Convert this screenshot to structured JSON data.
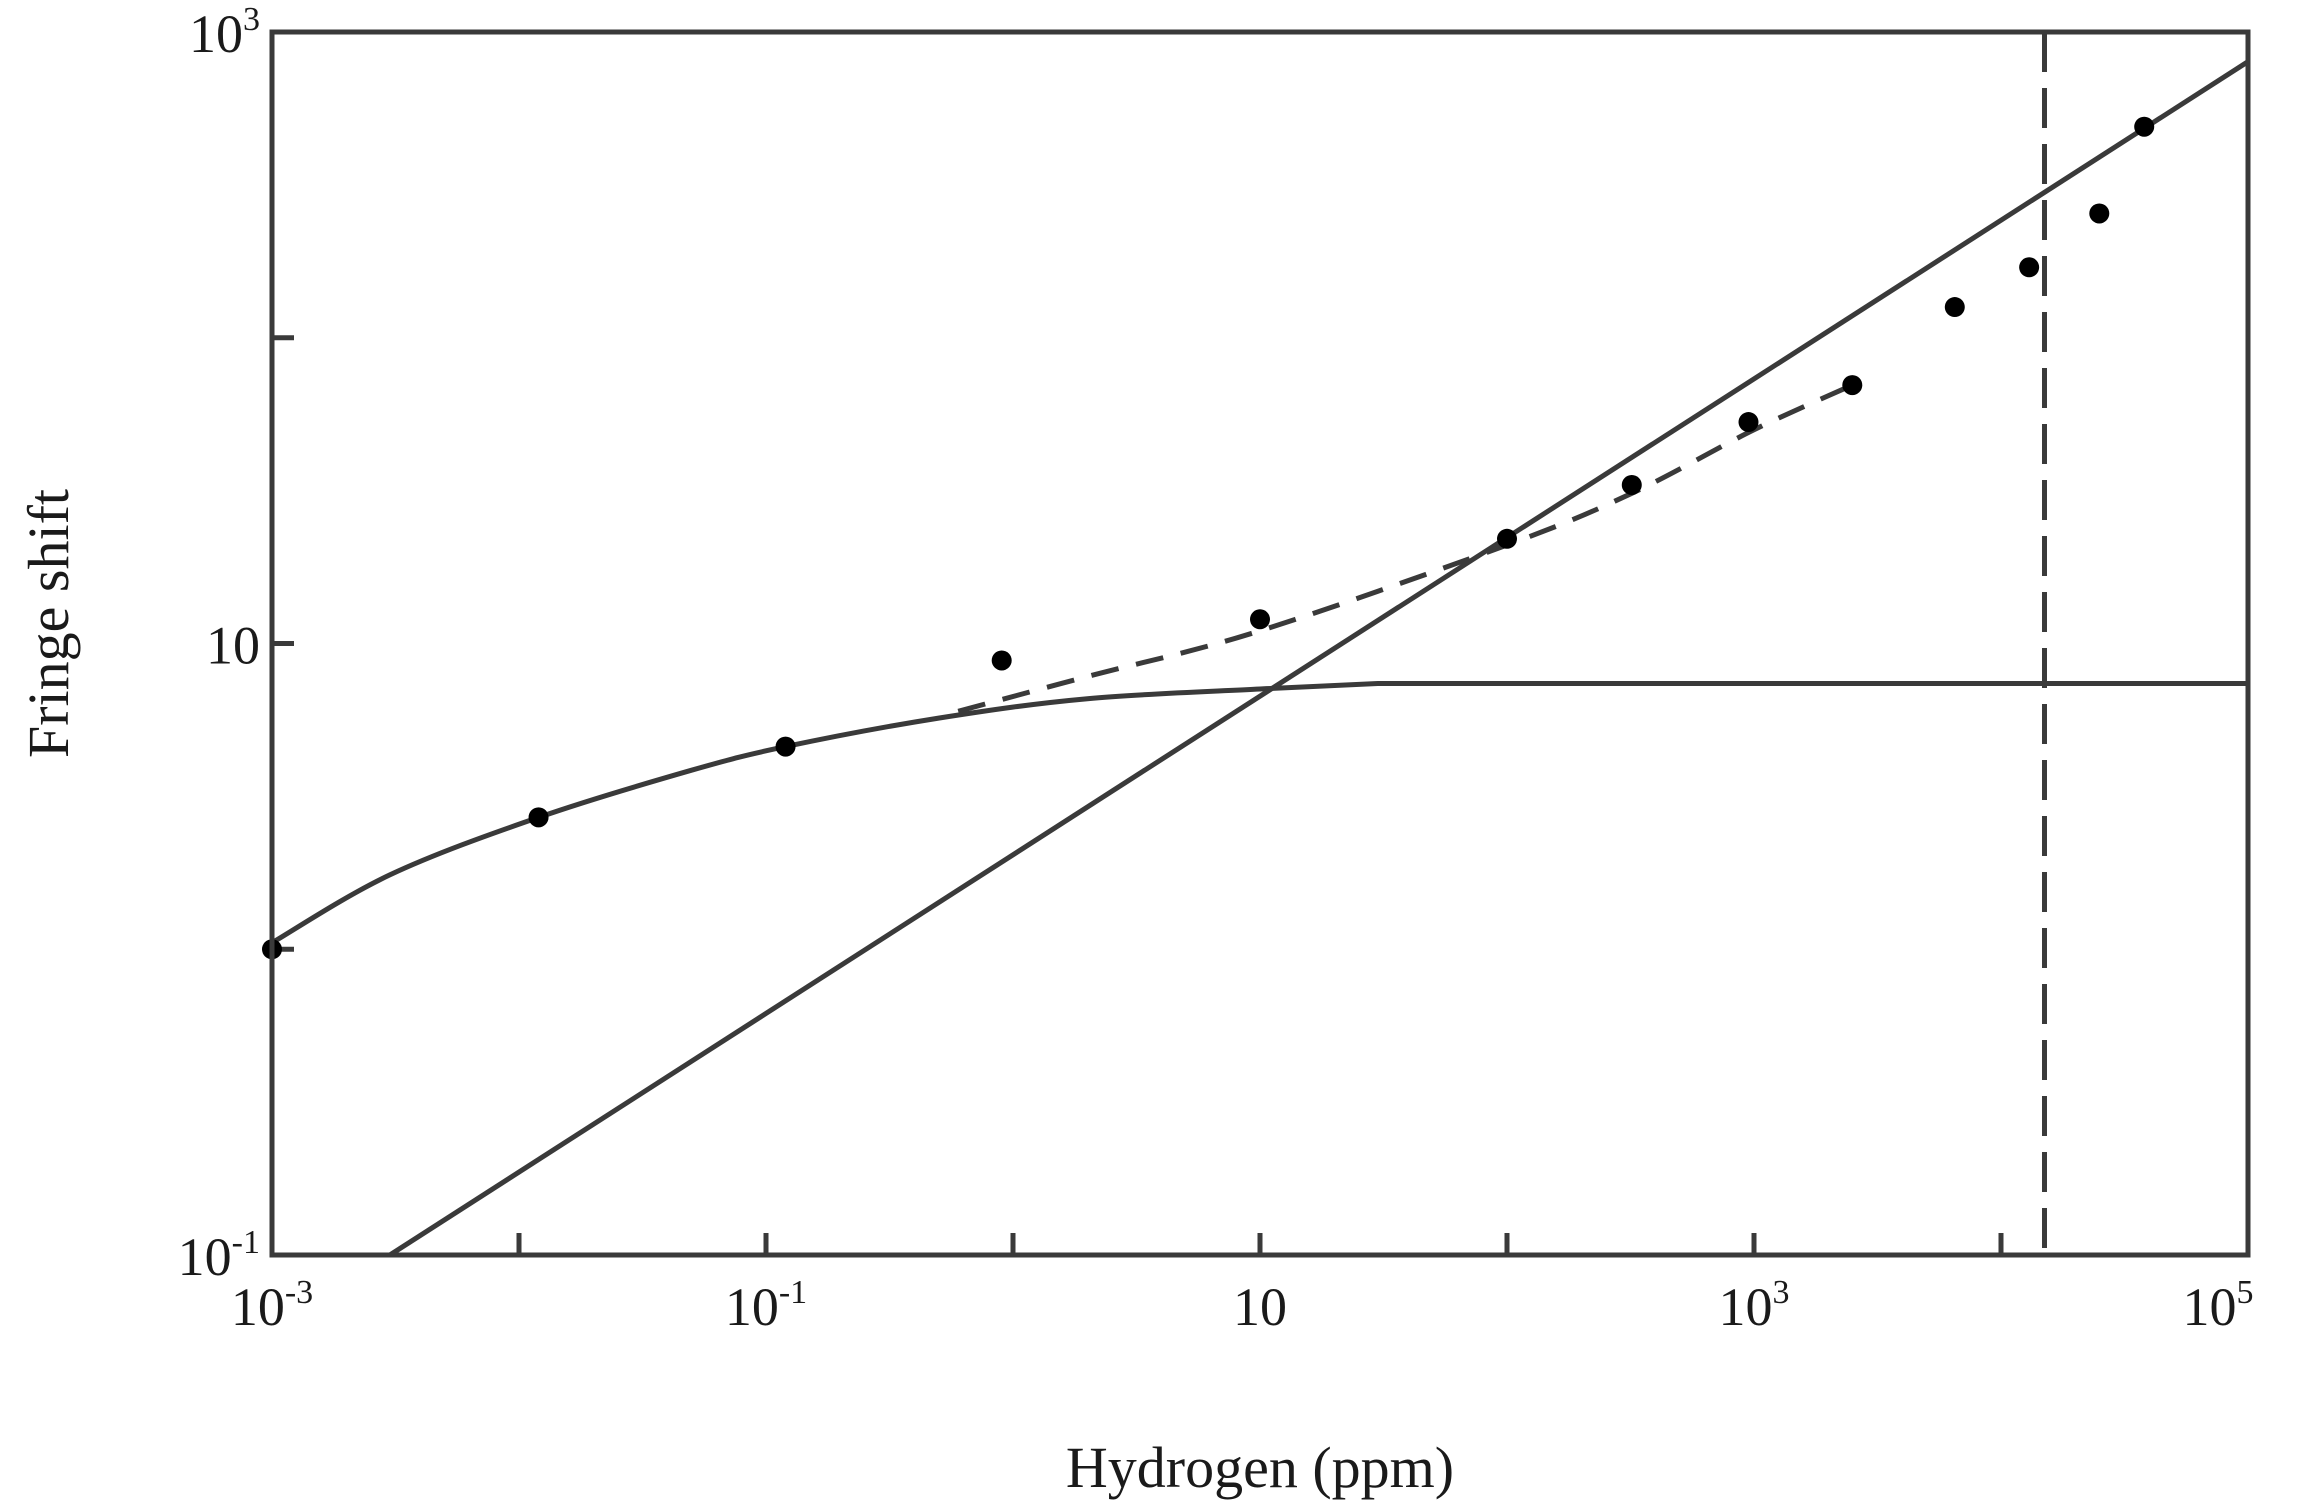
{
  "chart_data": {
    "type": "scatter",
    "xlabel": "Hydrogen (ppm)",
    "ylabel": "Fringe shift",
    "x_scale": "log",
    "y_scale": "log",
    "xlim": [
      0.001,
      100000
    ],
    "ylim": [
      0.1,
      1000
    ],
    "grid": false,
    "x_ticks": [
      {
        "base": "10",
        "exp": "-3"
      },
      {
        "base": "10",
        "exp": "-1"
      },
      {
        "base": "10",
        "exp": ""
      },
      {
        "base": "10",
        "exp": "3"
      },
      {
        "base": "10",
        "exp": "5"
      }
    ],
    "y_ticks": [
      {
        "base": "10",
        "exp": "-1"
      },
      {
        "base": "10",
        "exp": ""
      },
      {
        "base": "10",
        "exp": "3"
      }
    ],
    "points": [
      {
        "x": 0.001,
        "y": 1.0
      },
      {
        "x": 0.012,
        "y": 2.7
      },
      {
        "x": 0.12,
        "y": 4.6
      },
      {
        "x": 0.9,
        "y": 8.8
      },
      {
        "x": 10,
        "y": 12
      },
      {
        "x": 100,
        "y": 22
      },
      {
        "x": 320,
        "y": 33
      },
      {
        "x": 950,
        "y": 53
      },
      {
        "x": 2500,
        "y": 70
      },
      {
        "x": 6500,
        "y": 126
      },
      {
        "x": 13000,
        "y": 170
      },
      {
        "x": 25000,
        "y": 255
      },
      {
        "x": 38000,
        "y": 490
      }
    ],
    "saturation_curve": [
      {
        "x": 0.001,
        "y": 1.05
      },
      {
        "x": 0.003,
        "y": 1.75
      },
      {
        "x": 0.012,
        "y": 2.7
      },
      {
        "x": 0.05,
        "y": 3.85
      },
      {
        "x": 0.12,
        "y": 4.6
      },
      {
        "x": 0.5,
        "y": 5.7
      },
      {
        "x": 2,
        "y": 6.6
      },
      {
        "x": 10,
        "y": 7.1
      },
      {
        "x": 30,
        "y": 7.4
      },
      {
        "x": 100000,
        "y": 7.4
      }
    ],
    "linear_fit": [
      {
        "x": 0.003,
        "y": 0.1
      },
      {
        "x": 100000,
        "y": 800
      }
    ],
    "combined_curve": [
      {
        "x": 0.6,
        "y": 6.0
      },
      {
        "x": 2,
        "y": 7.8
      },
      {
        "x": 10,
        "y": 11
      },
      {
        "x": 100,
        "y": 21
      },
      {
        "x": 320,
        "y": 31
      },
      {
        "x": 1000,
        "y": 50
      },
      {
        "x": 2500,
        "y": 70
      }
    ],
    "vertical_marker_x": 15000
  }
}
